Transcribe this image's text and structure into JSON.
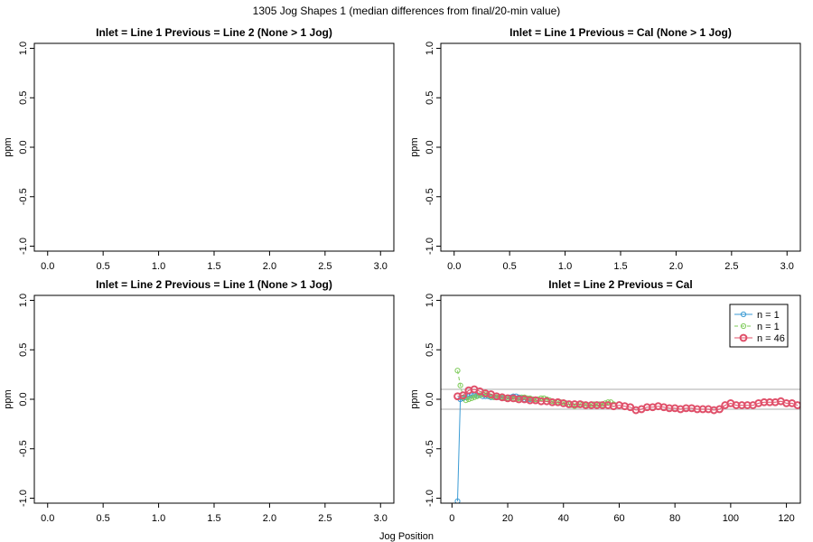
{
  "figure": {
    "title": "1305 Jog Shapes 1 (median differences from final/20-min value)",
    "xlabel": "Jog Position"
  },
  "chart_data": [
    {
      "type": "scatter",
      "title": "Inlet = Line 1  Previous = Line 2 (None > 1 Jog)",
      "ylabel": "ppm",
      "xlim": [
        -0.12,
        3.12
      ],
      "ylim": [
        -1.05,
        1.05
      ],
      "xticks": [
        "0.0",
        "0.5",
        "1.0",
        "1.5",
        "2.0",
        "2.5",
        "3.0"
      ],
      "yticks": [
        "-1.0",
        "-0.5",
        "0.0",
        "0.5",
        "1.0"
      ],
      "series": []
    },
    {
      "type": "scatter",
      "title": "Inlet = Line 1  Previous = Cal (None > 1 Jog)",
      "ylabel": "ppm",
      "xlim": [
        -0.12,
        3.12
      ],
      "ylim": [
        -1.05,
        1.05
      ],
      "xticks": [
        "0.0",
        "0.5",
        "1.0",
        "1.5",
        "2.0",
        "2.5",
        "3.0"
      ],
      "yticks": [
        "-1.0",
        "-0.5",
        "0.0",
        "0.5",
        "1.0"
      ],
      "series": []
    },
    {
      "type": "scatter",
      "title": "Inlet = Line 2  Previous = Line 1 (None > 1 Jog)",
      "ylabel": "ppm",
      "xlim": [
        -0.12,
        3.12
      ],
      "ylim": [
        -1.05,
        1.05
      ],
      "xticks": [
        "0.0",
        "0.5",
        "1.0",
        "1.5",
        "2.0",
        "2.5",
        "3.0"
      ],
      "yticks": [
        "-1.0",
        "-0.5",
        "0.0",
        "0.5",
        "1.0"
      ],
      "series": []
    },
    {
      "type": "line",
      "title": "Inlet = Line 2  Previous = Cal",
      "ylabel": "ppm",
      "xlim": [
        -4,
        125
      ],
      "ylim": [
        -1.05,
        1.05
      ],
      "xticks": [
        "0",
        "20",
        "40",
        "60",
        "80",
        "100",
        "120"
      ],
      "yticks": [
        "-1.0",
        "-0.5",
        "0.0",
        "0.5",
        "1.0"
      ],
      "reference_lines": [
        0.1,
        -0.1
      ],
      "reference_color": "#c8c8c8",
      "legend_position": "top-right",
      "series": [
        {
          "name": "n = 1",
          "color": "#3b9bd4",
          "marker": "small-open-circle",
          "line": "solid",
          "x": [
            2,
            3,
            4,
            5,
            6,
            7,
            8,
            9,
            10,
            11,
            12,
            13,
            14,
            15,
            16,
            17,
            18,
            19,
            20,
            21,
            22,
            23,
            24,
            25,
            26,
            27,
            28,
            29,
            30
          ],
          "y": [
            -1.03,
            0.0,
            0.01,
            0.02,
            0.03,
            0.04,
            0.04,
            0.04,
            0.04,
            0.03,
            0.03,
            0.03,
            0.02,
            0.02,
            0.02,
            0.02,
            0.01,
            0.01,
            0.01,
            0.02,
            0.03,
            0.03,
            0.02,
            0.01,
            0.0,
            0.0,
            0.0,
            0.0,
            0.0
          ]
        },
        {
          "name": "n = 1",
          "color": "#7ecb5a",
          "marker": "small-open-circle",
          "line": "dashed",
          "x": [
            2,
            3,
            4,
            5,
            6,
            7,
            8,
            9,
            10,
            11,
            12,
            13,
            14,
            15,
            16,
            17,
            18,
            19,
            20,
            21,
            22,
            23,
            24,
            25,
            26,
            27,
            28,
            29,
            30,
            31,
            32,
            33,
            34,
            35,
            36,
            37,
            38,
            39,
            40,
            41,
            42,
            43,
            44,
            45,
            46,
            47,
            48,
            49,
            50,
            51,
            52,
            53,
            54,
            55,
            56,
            57,
            58
          ],
          "y": [
            0.29,
            0.14,
            0.02,
            -0.01,
            0.0,
            0.01,
            0.02,
            0.03,
            0.04,
            0.05,
            0.05,
            0.04,
            0.03,
            0.02,
            0.02,
            0.02,
            0.02,
            0.01,
            0.01,
            0.01,
            0.0,
            0.0,
            0.01,
            0.02,
            0.02,
            0.01,
            0.01,
            0.0,
            0.0,
            0.0,
            0.01,
            0.01,
            0.0,
            -0.01,
            -0.02,
            -0.03,
            -0.03,
            -0.03,
            -0.03,
            -0.04,
            -0.05,
            -0.06,
            -0.07,
            -0.06,
            -0.05,
            -0.05,
            -0.06,
            -0.06,
            -0.05,
            -0.05,
            -0.05,
            -0.05,
            -0.05,
            -0.04,
            -0.03,
            -0.03,
            -0.05
          ]
        },
        {
          "name": "n = 46",
          "color": "#e0506a",
          "marker": "large-open-circle",
          "line": "solid",
          "x": [
            2,
            4,
            6,
            8,
            10,
            12,
            14,
            16,
            18,
            20,
            22,
            24,
            26,
            28,
            30,
            32,
            34,
            36,
            38,
            40,
            42,
            44,
            46,
            48,
            50,
            52,
            54,
            56,
            58,
            60,
            62,
            64,
            66,
            68,
            70,
            72,
            74,
            76,
            78,
            80,
            82,
            84,
            86,
            88,
            90,
            92,
            94,
            96,
            98,
            100,
            102,
            104,
            106,
            108,
            110,
            112,
            114,
            116,
            118,
            120,
            122,
            124
          ],
          "y": [
            0.03,
            0.04,
            0.09,
            0.1,
            0.08,
            0.06,
            0.05,
            0.03,
            0.02,
            0.01,
            0.01,
            0.0,
            0.0,
            -0.01,
            -0.01,
            -0.02,
            -0.02,
            -0.03,
            -0.03,
            -0.04,
            -0.05,
            -0.05,
            -0.05,
            -0.06,
            -0.06,
            -0.06,
            -0.06,
            -0.06,
            -0.07,
            -0.06,
            -0.07,
            -0.08,
            -0.11,
            -0.1,
            -0.08,
            -0.08,
            -0.07,
            -0.08,
            -0.09,
            -0.09,
            -0.1,
            -0.09,
            -0.09,
            -0.1,
            -0.1,
            -0.1,
            -0.11,
            -0.1,
            -0.06,
            -0.04,
            -0.06,
            -0.06,
            -0.06,
            -0.06,
            -0.04,
            -0.03,
            -0.03,
            -0.03,
            -0.02,
            -0.04,
            -0.04,
            -0.06
          ]
        }
      ]
    }
  ]
}
